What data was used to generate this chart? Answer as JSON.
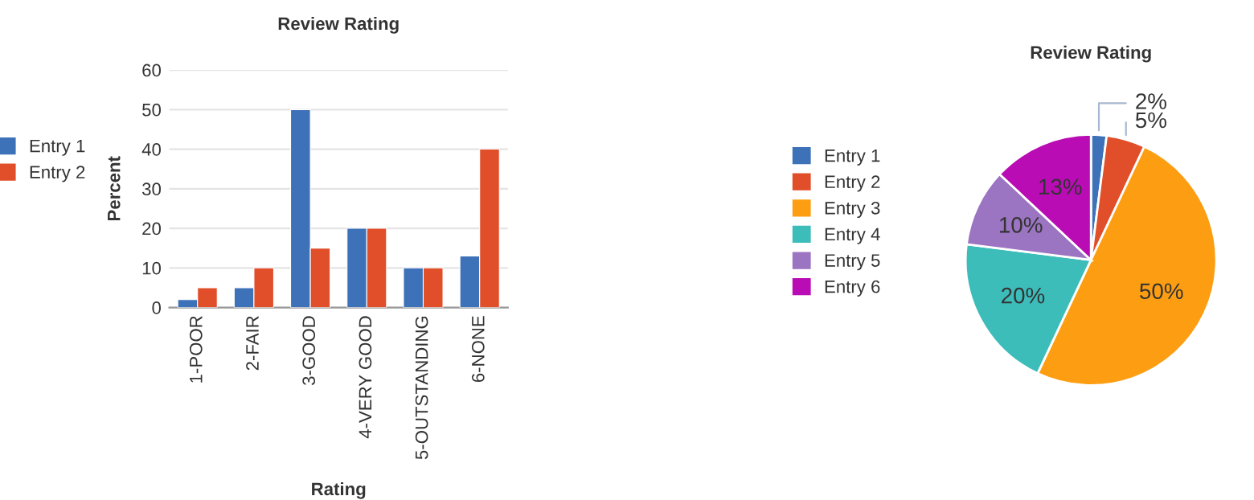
{
  "chart_data": [
    {
      "type": "bar",
      "title": "Review Rating",
      "xlabel": "Rating",
      "ylabel": "Percent",
      "categories": [
        "1-POOR",
        "2-FAIR",
        "3-GOOD",
        "4-VERY GOOD",
        "5-OUTSTANDING",
        "6-NONE"
      ],
      "series": [
        {
          "name": "Entry 1",
          "color": "#3d71b8",
          "values": [
            2,
            5,
            50,
            20,
            10,
            13
          ]
        },
        {
          "name": "Entry 2",
          "color": "#e04e2a",
          "values": [
            5,
            10,
            15,
            20,
            10,
            40
          ]
        }
      ],
      "ylim": [
        0,
        60
      ],
      "yticks": [
        0,
        10,
        20,
        30,
        40,
        50,
        60
      ],
      "grid": "y",
      "legend": "left"
    },
    {
      "type": "pie",
      "title": "Review Rating",
      "categories": [
        "Entry 1",
        "Entry 2",
        "Entry 3",
        "Entry 4",
        "Entry 5",
        "Entry 6"
      ],
      "values": [
        2,
        5,
        50,
        20,
        10,
        13
      ],
      "value_labels": [
        "2%",
        "5%",
        "50%",
        "20%",
        "10%",
        "13%"
      ],
      "colors": [
        "#3d71b8",
        "#e04e2a",
        "#fd9e12",
        "#3dbdba",
        "#9b74c2",
        "#b90cb4"
      ],
      "legend": "left"
    }
  ]
}
